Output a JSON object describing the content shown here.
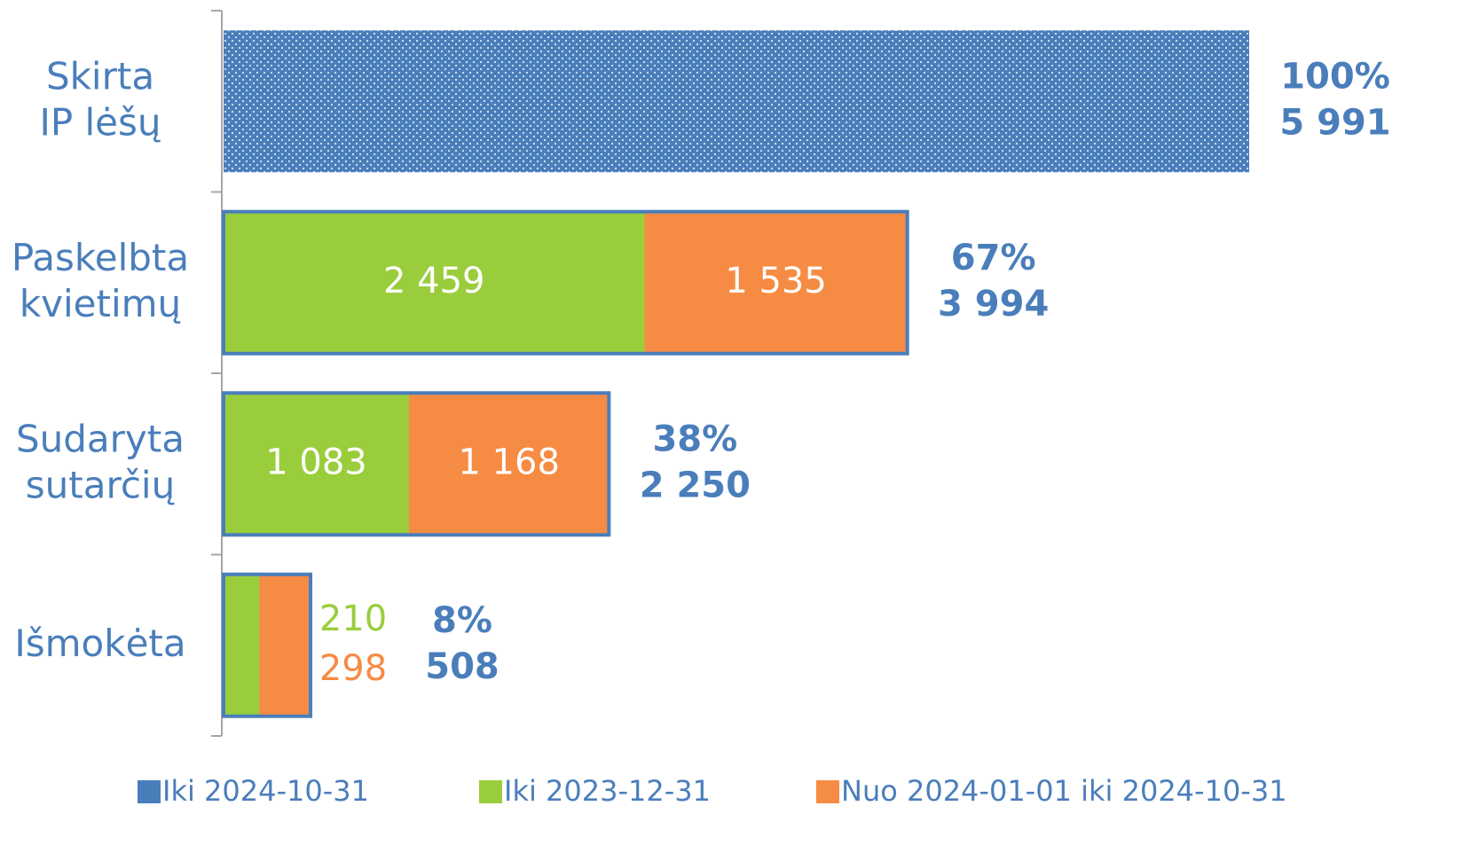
{
  "chart_data": {
    "type": "stacked_barh",
    "categories": [
      [
        "Skirta",
        "IP lėšų"
      ],
      [
        "Paskelbta",
        "kvietimų"
      ],
      [
        "Sudaryta",
        "sutarčių"
      ],
      [
        "Išmokėta"
      ]
    ],
    "series": [
      {
        "name": "Iki 2024-10-31",
        "color": "#4a7ebb",
        "pattern": "dots",
        "values": [
          5991,
          null,
          null,
          null
        ],
        "value_labels": [
          null,
          null,
          null,
          null
        ]
      },
      {
        "name": "Iki 2023-12-31",
        "color": "#9acd3c",
        "values": [
          null,
          2459,
          1083,
          210
        ],
        "value_labels": [
          null,
          "2 459",
          "1 083",
          "210"
        ]
      },
      {
        "name": "Nuo 2024-01-01 iki 2024-10-31",
        "color": "#f68b44",
        "values": [
          null,
          1535,
          1168,
          298
        ],
        "value_labels": [
          null,
          "1 535",
          "1 168",
          "298"
        ]
      }
    ],
    "percents": [
      100,
      67,
      38,
      8
    ],
    "percent_labels": [
      "100%",
      "67%",
      "38%",
      "8%"
    ],
    "totals": [
      5991,
      3994,
      2250,
      508
    ],
    "total_labels": [
      "5 991",
      "3 994",
      "2 250",
      "508"
    ],
    "legend": "bottom"
  }
}
